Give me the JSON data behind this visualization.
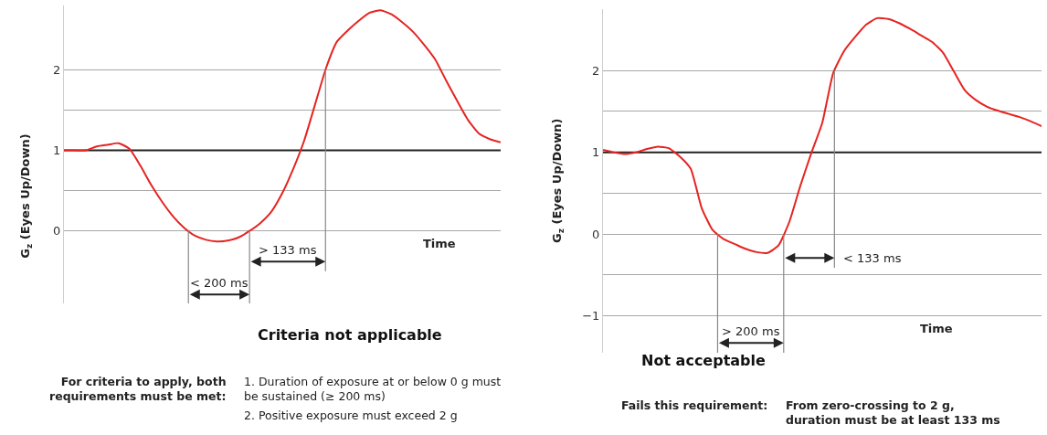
{
  "chart_data": [
    {
      "type": "line",
      "title": "Criteria not applicable",
      "xlabel": "Time",
      "ylabel": "G$_{z}$ (Eyes Up/Down)",
      "categories": [
        null,
        null,
        null,
        null,
        null,
        null,
        null,
        null,
        null,
        null,
        null,
        null,
        null,
        null,
        null,
        null,
        null,
        null,
        null,
        null,
        null,
        null,
        null,
        null,
        null,
        null,
        null,
        null,
        null,
        null,
        null,
        null,
        null,
        null,
        null,
        null,
        null,
        null,
        null,
        null,
        null
      ],
      "series": [
        {
          "color": "#e52421",
          "values": [
            1.0,
            1.0,
            1.0,
            1.05,
            1.07,
            1.09,
            1.02,
            0.81,
            0.57,
            0.36,
            0.18,
            0.04,
            -0.06,
            -0.11,
            -0.13,
            -0.12,
            -0.08,
            0.0,
            0.1,
            0.24,
            0.47,
            0.77,
            1.12,
            1.57,
            2.02,
            2.35,
            2.49,
            2.61,
            2.71,
            2.74,
            2.69,
            2.59,
            2.47,
            2.31,
            2.13,
            1.87,
            1.62,
            1.38,
            1.21,
            1.14,
            1.1
          ]
        }
      ],
      "ylim": [
        -0.9,
        2.8
      ],
      "yticks": [
        0,
        {
          "value": 0.5,
          "label": null
        },
        1,
        {
          "value": 1.5,
          "label": null
        },
        2
      ],
      "grid": "y",
      "tick_labels": "y",
      "marker": "none",
      "line_style": "solid",
      "ref_lines": [
        {
          "axis": "y",
          "value": 1,
          "color": "#222222"
        }
      ],
      "annotations": [
        "< 200 ms",
        "> 133 ms",
        "For criteria to apply, both requirements must be met:",
        "1. Duration of exposure at or below 0 g must be sustained (≥ 200 ms)",
        "2. Positive exposure must exceed 2 g"
      ]
    },
    {
      "type": "line",
      "title": "Not acceptable",
      "xlabel": "Time",
      "ylabel": "G$_{z}$ (Eyes Up/Down)",
      "categories": [
        null,
        null,
        null,
        null,
        null,
        null,
        null,
        null,
        null,
        null,
        null,
        null,
        null,
        null,
        null,
        null,
        null,
        null,
        null,
        null,
        null,
        null,
        null,
        null,
        null,
        null,
        null,
        null,
        null,
        null,
        null,
        null,
        null,
        null,
        null,
        null,
        null,
        null,
        null,
        null,
        null
      ],
      "series": [
        {
          "color": "#e52421",
          "values": [
            1.03,
            1.0,
            0.98,
            1.0,
            1.04,
            1.07,
            1.05,
            0.95,
            0.8,
            0.32,
            0.05,
            -0.06,
            -0.12,
            -0.18,
            -0.22,
            -0.23,
            -0.14,
            0.15,
            0.59,
            0.99,
            1.36,
            1.97,
            2.24,
            2.41,
            2.56,
            2.64,
            2.63,
            2.58,
            2.51,
            2.43,
            2.35,
            2.22,
            1.99,
            1.76,
            1.64,
            1.56,
            1.51,
            1.47,
            1.43,
            1.38,
            1.32
          ]
        }
      ],
      "ylim": [
        -1.45,
        2.75
      ],
      "yticks": [
        -1,
        {
          "value": -0.5,
          "label": null
        },
        0,
        {
          "value": 0.5,
          "label": null
        },
        1,
        {
          "value": 1.5,
          "label": null
        },
        2
      ],
      "grid": "y",
      "tick_labels": "y",
      "marker": "none",
      "line_style": "solid",
      "ref_lines": [
        {
          "axis": "y",
          "value": 1,
          "color": "#222222"
        }
      ],
      "annotations": [
        "> 200 ms",
        "< 133 ms",
        "Fails this requirement:",
        "From zero-crossing to 2 g, duration must be at least 133 ms"
      ]
    }
  ]
}
